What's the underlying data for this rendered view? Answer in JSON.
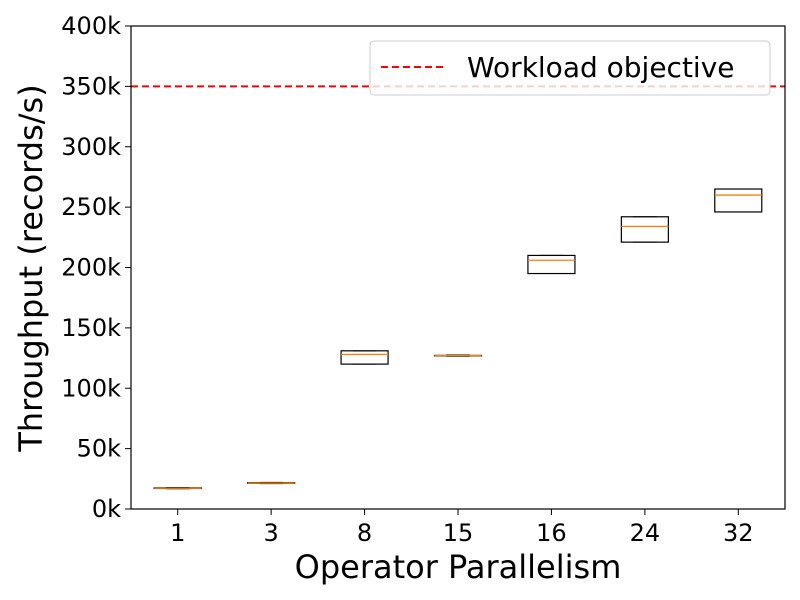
{
  "chart_data": {
    "type": "box",
    "xlabel": "Operator Parallelism",
    "ylabel": "Throughput (records/s)",
    "ylim": [
      0,
      400000
    ],
    "yticks": [
      {
        "value": 0,
        "label": "0k"
      },
      {
        "value": 50000,
        "label": "50k"
      },
      {
        "value": 100000,
        "label": "100k"
      },
      {
        "value": 150000,
        "label": "150k"
      },
      {
        "value": 200000,
        "label": "200k"
      },
      {
        "value": 250000,
        "label": "250k"
      },
      {
        "value": 300000,
        "label": "300k"
      },
      {
        "value": 350000,
        "label": "350k"
      },
      {
        "value": 400000,
        "label": "400k"
      }
    ],
    "categories": [
      "1",
      "3",
      "8",
      "15",
      "16",
      "24",
      "32"
    ],
    "boxes": [
      {
        "category": "1",
        "min": 16800,
        "q1": 17000,
        "median": 17200,
        "q3": 17500,
        "max": 17700
      },
      {
        "category": "3",
        "min": 21000,
        "q1": 21300,
        "median": 21500,
        "q3": 21800,
        "max": 22000
      },
      {
        "category": "8",
        "min": 120000,
        "q1": 120000,
        "median": 128000,
        "q3": 131000,
        "max": 131000
      },
      {
        "category": "15",
        "min": 126500,
        "q1": 126800,
        "median": 127000,
        "q3": 127200,
        "max": 127500
      },
      {
        "category": "16",
        "min": 195000,
        "q1": 195000,
        "median": 206000,
        "q3": 210000,
        "max": 210000
      },
      {
        "category": "24",
        "min": 221000,
        "q1": 221000,
        "median": 234000,
        "q3": 242000,
        "max": 242000
      },
      {
        "category": "32",
        "min": 246000,
        "q1": 246000,
        "median": 260000,
        "q3": 265000,
        "max": 265000
      }
    ],
    "reference_line": {
      "value": 350000,
      "label": "Workload objective",
      "color": "#ff0000",
      "style": "dashed"
    },
    "box_color": "#000000",
    "median_color": "#ff7f0e",
    "legend": {
      "position": "top-right",
      "entries": [
        "Workload objective"
      ]
    },
    "grid": false
  }
}
